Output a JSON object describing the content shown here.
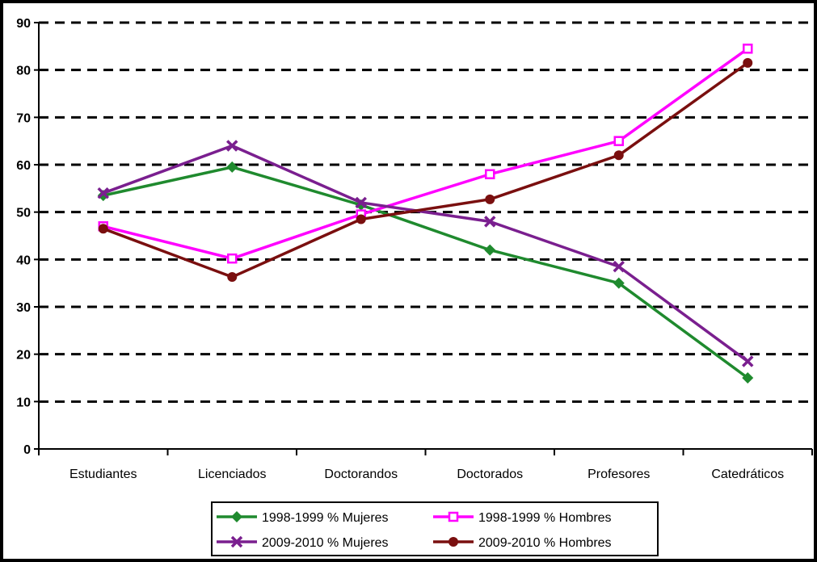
{
  "chart_data": {
    "type": "line",
    "title": "",
    "xlabel": "",
    "ylabel": "",
    "ylim": [
      0,
      90
    ],
    "yticks": [
      "0",
      "10",
      "20",
      "30",
      "40",
      "50",
      "60",
      "70",
      "80",
      "90"
    ],
    "grid": "horizontal-dashed",
    "legend_position": "bottom",
    "categories": [
      "Estudiantes",
      "Licenciados",
      "Doctorandos",
      "Doctorados",
      "Profesores",
      "Catedráticos"
    ],
    "series": [
      {
        "name": "1998-1999 % Mujeres",
        "color": "#1f8a2e",
        "marker": "diamond",
        "values": [
          53.5,
          59.5,
          51.5,
          42,
          35,
          15
        ]
      },
      {
        "name": "1998-1999 % Hombres",
        "color": "#ff00ff",
        "marker": "square-open",
        "values": [
          47,
          40.2,
          49.5,
          58,
          65,
          84.5
        ]
      },
      {
        "name": "2009-2010 % Mujeres",
        "color": "#7a1f8f",
        "marker": "x",
        "values": [
          54,
          64,
          52,
          48,
          38.5,
          18.5
        ]
      },
      {
        "name": "2009-2010 % Hombres",
        "color": "#7a0f0f",
        "marker": "circle",
        "values": [
          46.5,
          36.3,
          48.5,
          52.7,
          62,
          81.5
        ]
      }
    ]
  }
}
